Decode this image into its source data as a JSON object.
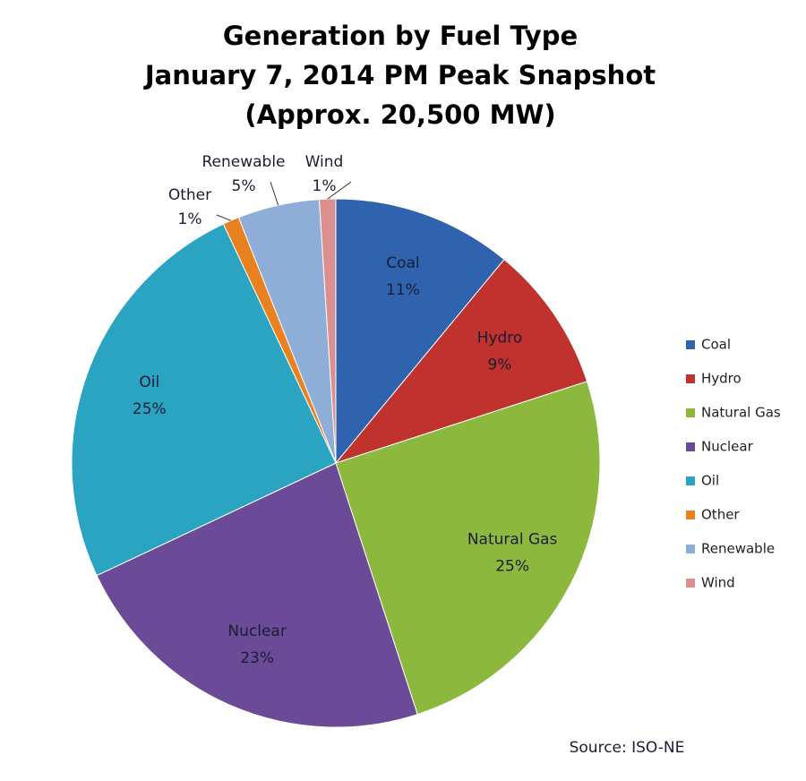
{
  "chart_data": {
    "type": "pie",
    "title": [
      "Generation by Fuel Type",
      "January 7, 2014 PM Peak Snapshot",
      "(Approx. 20,500 MW)"
    ],
    "categories": [
      "Coal",
      "Hydro",
      "Natural Gas",
      "Nuclear",
      "Oil",
      "Other",
      "Renewable",
      "Wind"
    ],
    "values": [
      11,
      9,
      25,
      23,
      25,
      1,
      5,
      1
    ],
    "value_labels": [
      "11%",
      "9%",
      "25%",
      "23%",
      "25%",
      "1%",
      "5%",
      "1%"
    ],
    "colors": [
      "#2f63ae",
      "#c0322e",
      "#8cb83e",
      "#6b4a98",
      "#2ba4c2",
      "#ea8120",
      "#8eaed8",
      "#dc8f8f"
    ],
    "legend": "right",
    "source": "Source: ISO-NE"
  }
}
